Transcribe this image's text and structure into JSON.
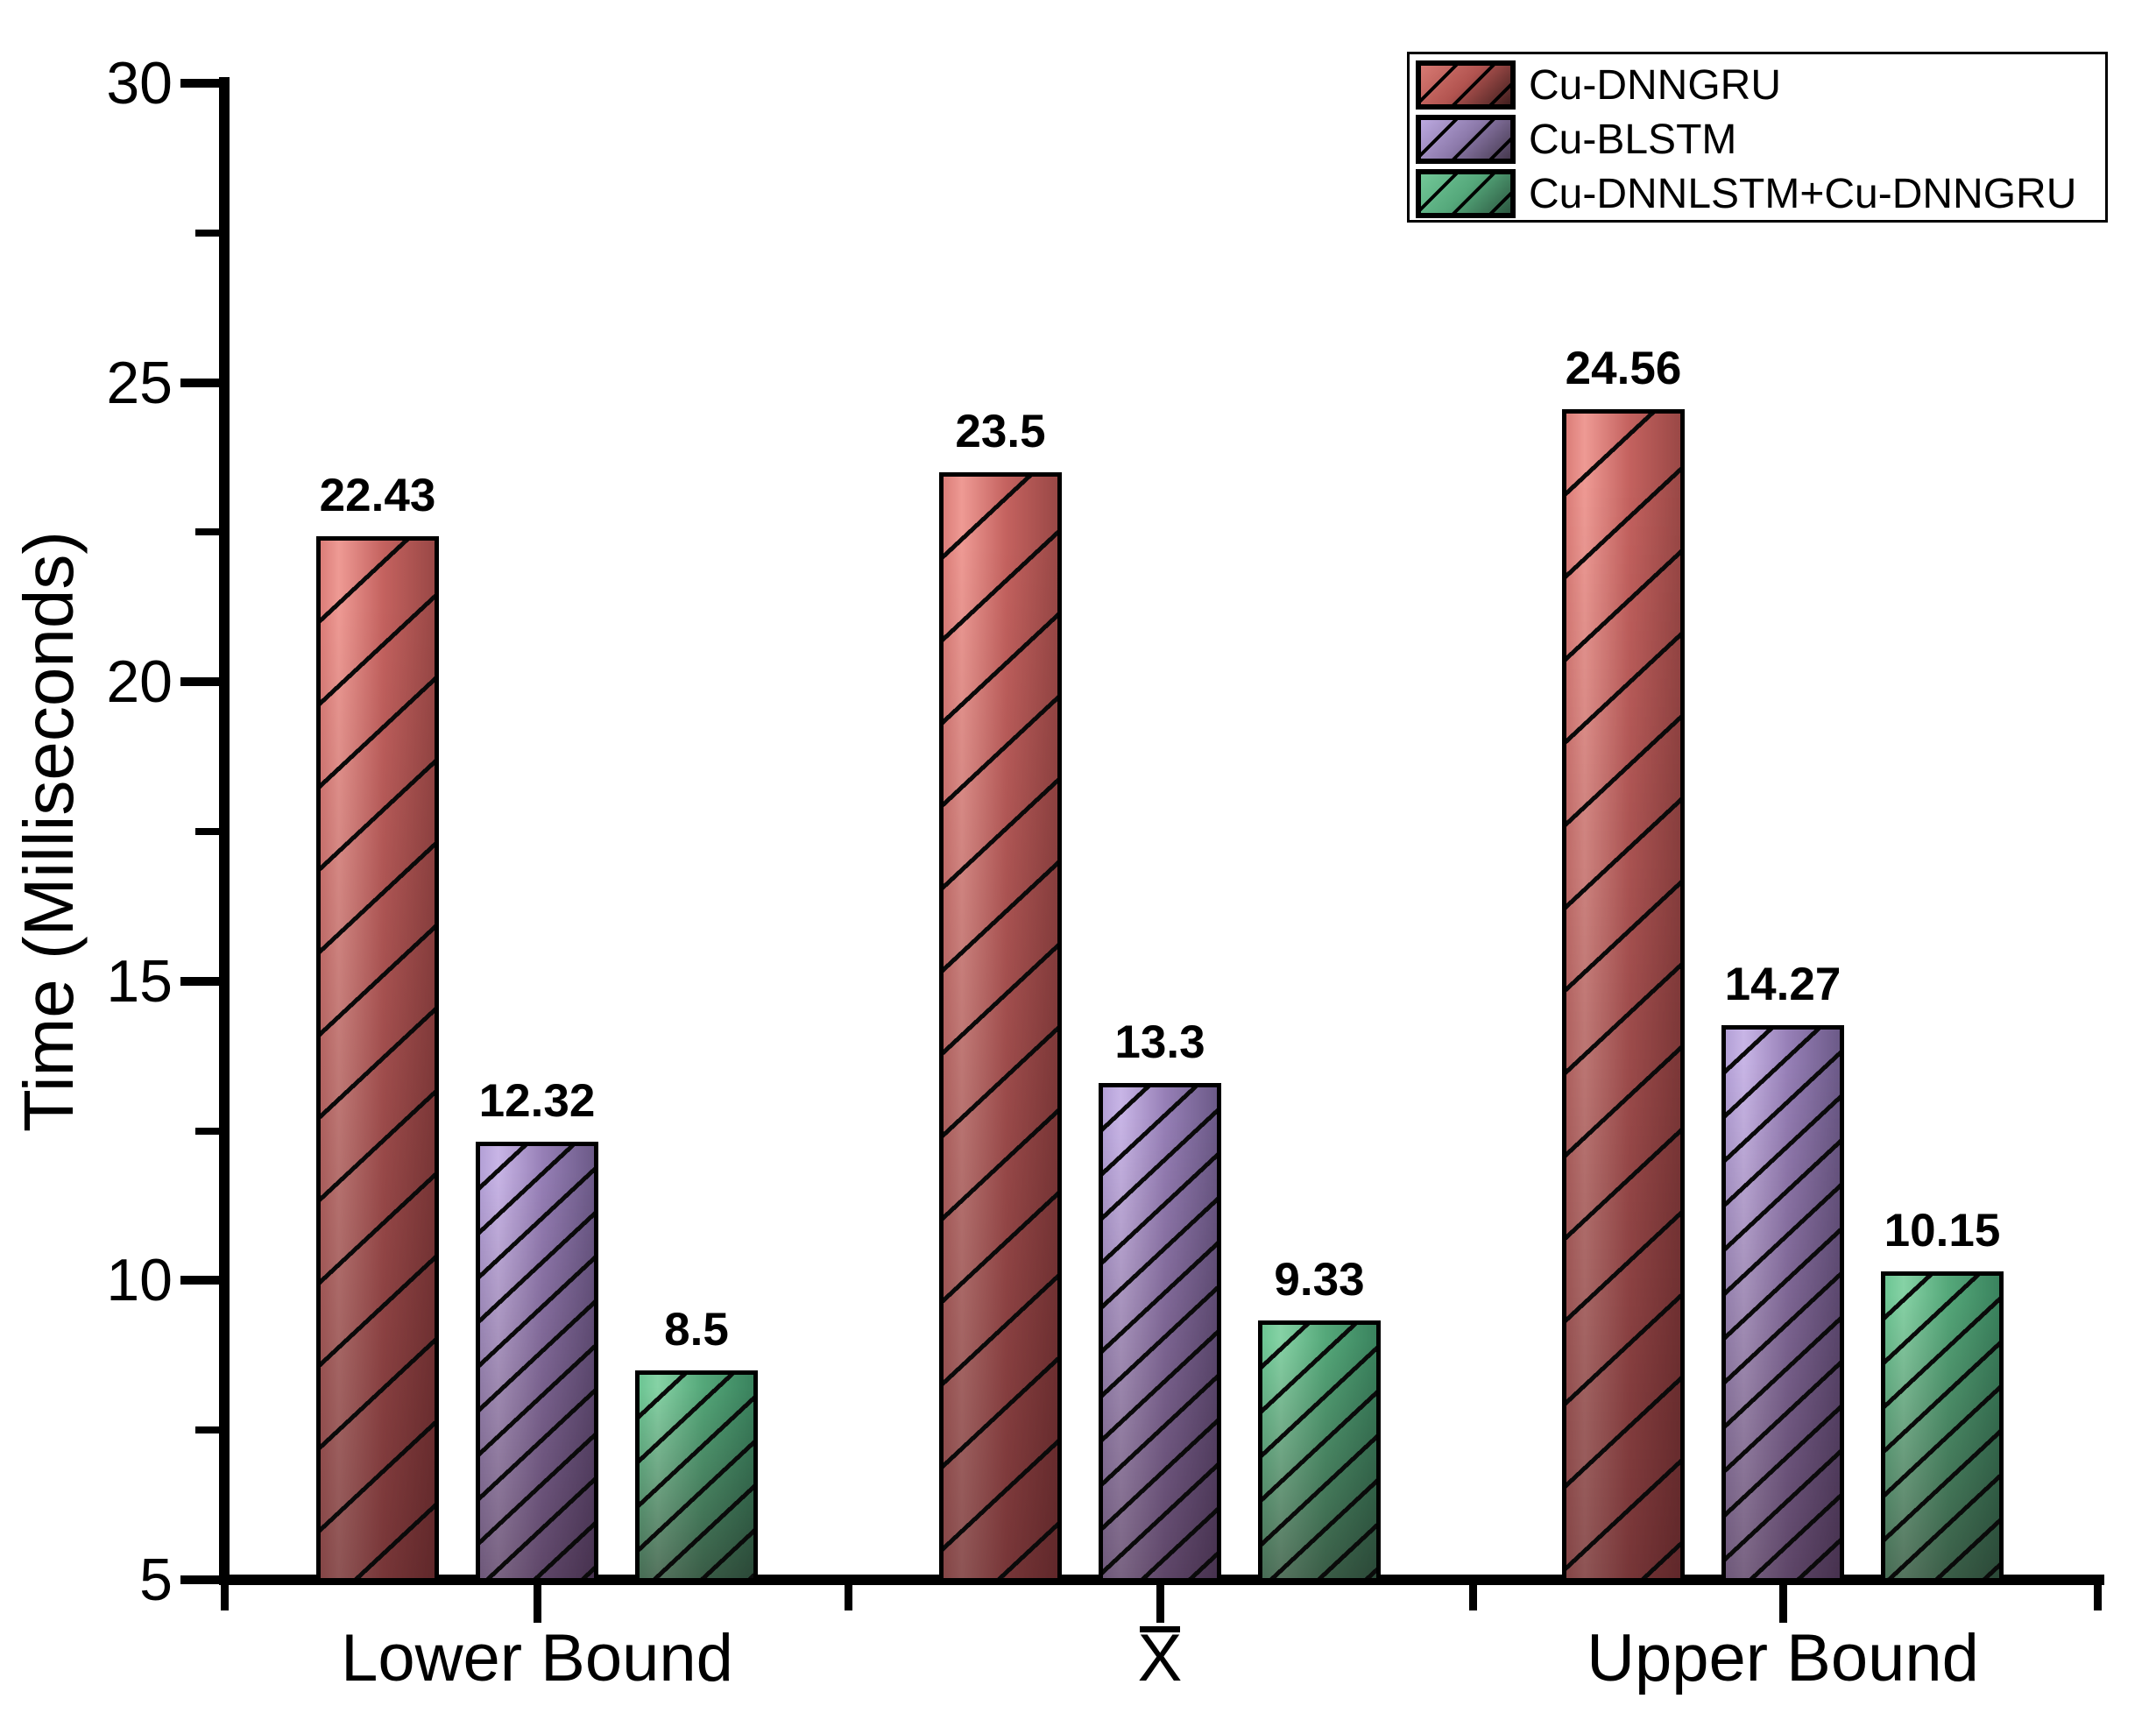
{
  "figure": {
    "background": "#ffffff",
    "text_color": "#000000"
  },
  "chart_data": {
    "type": "bar",
    "title": "",
    "xlabel": "",
    "ylabel": "Time (Milliseconds)",
    "ylim": [
      5,
      30
    ],
    "grid": false,
    "legend_position": "top-right",
    "categories": [
      {
        "label": "Lower Bound",
        "overline": false
      },
      {
        "label": "X",
        "overline": true
      },
      {
        "label": "Upper Bound",
        "overline": false
      }
    ],
    "yticks": {
      "labels": [
        "5",
        "10",
        "15",
        "20",
        "25",
        "30"
      ],
      "values": [
        5,
        10,
        15,
        20,
        25,
        30
      ],
      "minor_values": [
        7.5,
        12.5,
        17.5,
        22.5,
        27.5
      ]
    },
    "series": [
      {
        "name": "Cu-DNNGRU",
        "values": [
          22.43,
          23.5,
          24.56
        ],
        "value_labels": [
          "22.43",
          "23.5",
          "24.56"
        ],
        "colors": {
          "bar_gradient": [
            "#db7d78",
            "#ee9a94",
            "#c4625f",
            "#9a4846"
          ],
          "legend_gradient": [
            "#d87a73",
            "#b25450",
            "#401e1e"
          ],
          "hatch": "#0a0a0a"
        },
        "hatch_spacing_px": 69
      },
      {
        "name": "Cu-BLSTM",
        "values": [
          12.32,
          13.3,
          14.27
        ],
        "value_labels": [
          "12.32",
          "13.3",
          "14.27"
        ],
        "colors": {
          "bar_gradient": [
            "#b3a0d6",
            "#c8b5e6",
            "#967fb6",
            "#6c5a88"
          ],
          "legend_gradient": [
            "#bca9e0",
            "#8d7aab",
            "#45384e"
          ],
          "hatch": "#0a0a0a"
        },
        "hatch_spacing_px": 37
      },
      {
        "name": "Cu-DNNLSTM+Cu-DNNGRU",
        "values": [
          8.5,
          9.33,
          10.15
        ],
        "value_labels": [
          "8.5",
          "9.33",
          "10.15"
        ],
        "colors": {
          "bar_gradient": [
            "#6cc593",
            "#86d2a5",
            "#55a87a",
            "#3a835e"
          ],
          "legend_gradient": [
            "#72c898",
            "#55a87b",
            "#2c5740"
          ],
          "hatch": "#0a0a0a"
        },
        "hatch_spacing_px": 37
      }
    ]
  }
}
